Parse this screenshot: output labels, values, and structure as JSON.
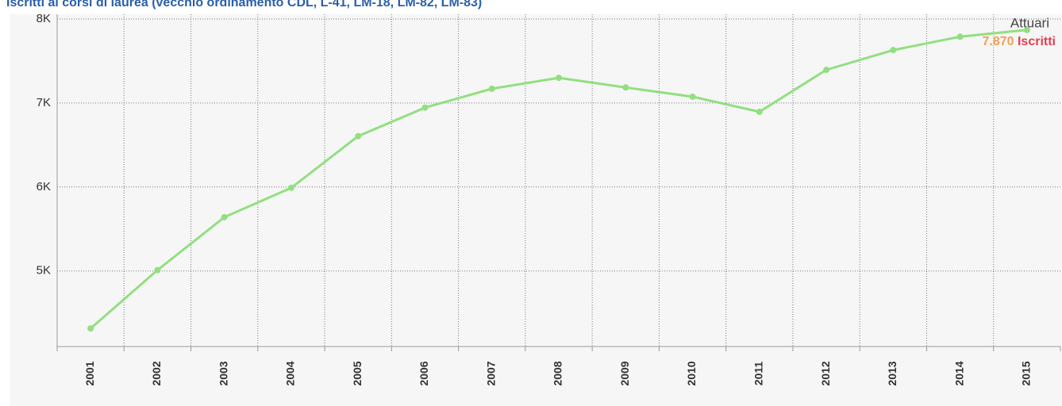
{
  "chart_data": {
    "type": "line",
    "title": "Iscritti ai corsi di laurea (vecchio ordinamento CDL, L-41, LM-18, LM-82, LM-83)",
    "categories": [
      "2001",
      "2002",
      "2003",
      "2004",
      "2005",
      "2006",
      "2007",
      "2008",
      "2009",
      "2010",
      "2011",
      "2012",
      "2013",
      "2014",
      "2015"
    ],
    "series": [
      {
        "name": "Attuari",
        "color": "#92df80",
        "values": [
          4315,
          5010,
          5640,
          5990,
          6605,
          6945,
          7170,
          7300,
          7185,
          7075,
          6895,
          7395,
          7630,
          7790,
          7870
        ],
        "value_labels": [
          null,
          null,
          null,
          null,
          null,
          null,
          null,
          null,
          null,
          null,
          null,
          null,
          null,
          null,
          "7.870"
        ]
      }
    ],
    "legend_unit": "Iscritti",
    "ylim": [
      4100,
      8000
    ],
    "yticks": [
      {
        "value": 5000,
        "label": "5K"
      },
      {
        "value": 6000,
        "label": "6K"
      },
      {
        "value": 7000,
        "label": "7K"
      },
      {
        "value": 8000,
        "label": "8K"
      }
    ],
    "grid": true
  }
}
